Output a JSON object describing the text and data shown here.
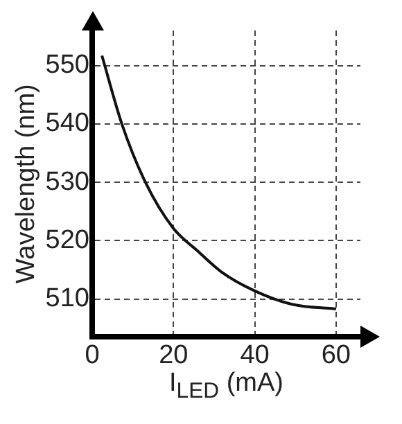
{
  "chart_data": {
    "type": "line",
    "xlabel": "I$_{LED}$ (mA)",
    "ylabel": "Wavelength (nm)",
    "x": [
      2.4,
      7.3,
      13.1,
      20,
      26,
      31.7,
      40,
      49.2,
      60
    ],
    "series": [
      {
        "color": "#111111",
        "values": [
          551.7,
          540,
          530,
          522.1,
          518.2,
          514.7,
          511.4,
          509.1,
          508.3
        ]
      }
    ],
    "xlim": [
      0,
      66
    ],
    "xticks": [
      0,
      20,
      40,
      60
    ],
    "ylim": [
      503.5,
      556
    ],
    "yticks": [
      510,
      520,
      530,
      540,
      550
    ],
    "grid": true,
    "legend": false,
    "marker": "none",
    "line_style": "solid"
  }
}
